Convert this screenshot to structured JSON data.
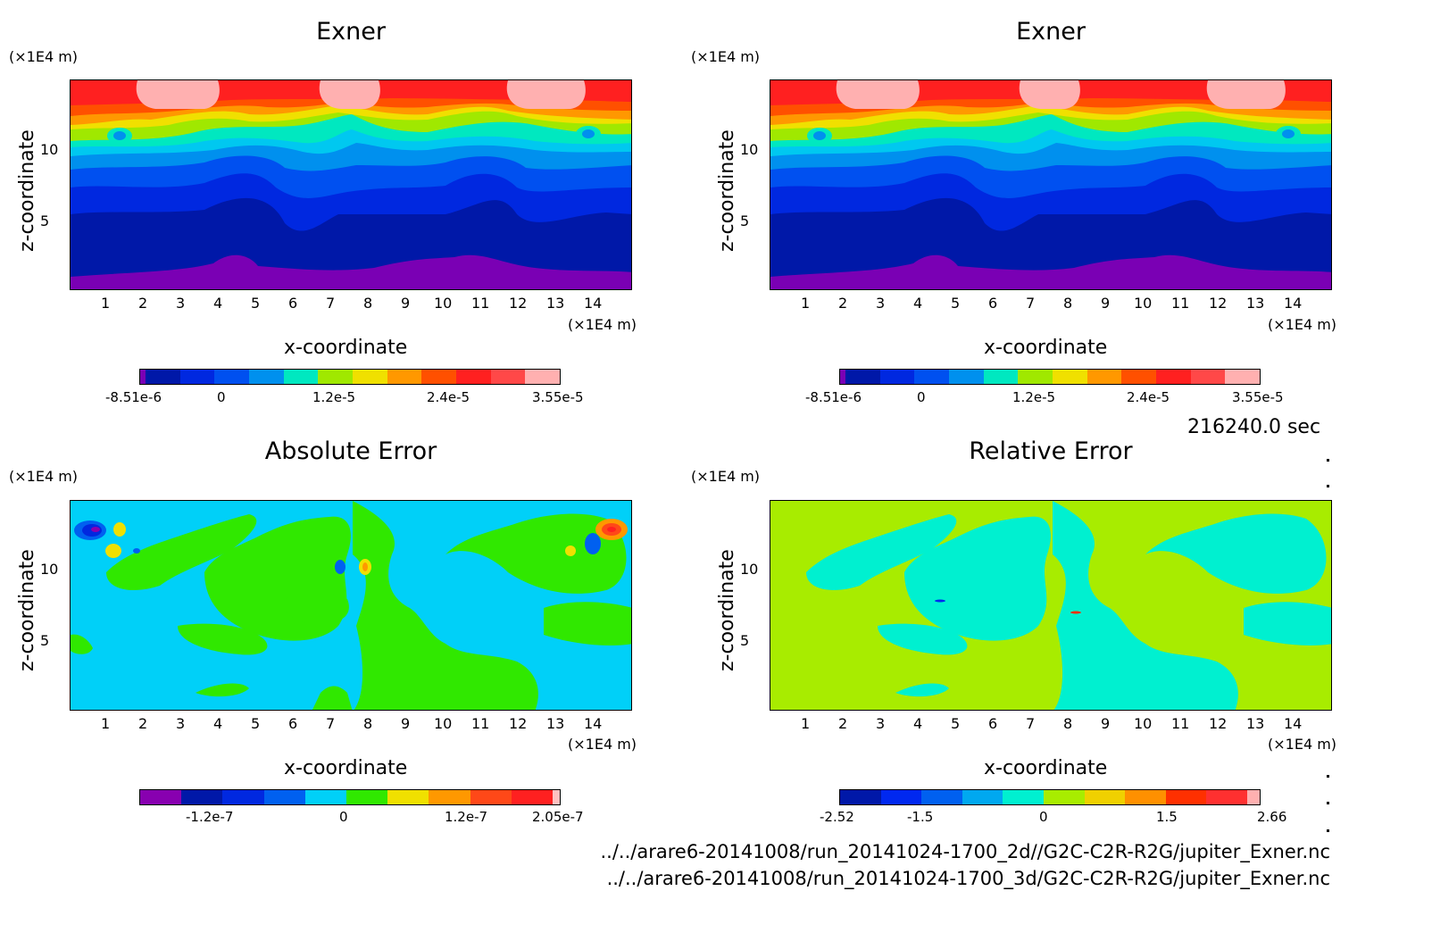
{
  "chart_data": [
    {
      "type": "heatmap",
      "title": "Exner",
      "xlabel": "x-coordinate",
      "ylabel": "z-coordinate",
      "xunit": "(×1E4 m)",
      "yunit": "(×1E4 m)",
      "xticks": [
        "1",
        "2",
        "3",
        "4",
        "5",
        "6",
        "7",
        "8",
        "9",
        "10",
        "11",
        "12",
        "13",
        "14"
      ],
      "yticks": [
        "5",
        "10"
      ],
      "colorbar": {
        "min": -8.51e-06,
        "max": 3.55e-05,
        "labels": [
          "-8.51e-6",
          "0",
          "1.2e-5",
          "2.4e-5",
          "3.55e-5"
        ]
      },
      "colors": [
        "#7a00b4",
        "#0018a8",
        "#0028e0",
        "#0050f0",
        "#0090ee",
        "#00c8f0",
        "#00e8c0",
        "#a0e800",
        "#f0e000",
        "#ff9800",
        "#ff5000",
        "#ff2020",
        "#ff4848",
        "#ffb0b0"
      ]
    },
    {
      "type": "heatmap",
      "title": "Exner",
      "xlabel": "x-coordinate",
      "ylabel": "z-coordinate",
      "xunit": "(×1E4 m)",
      "yunit": "(×1E4 m)",
      "xticks": [
        "1",
        "2",
        "3",
        "4",
        "5",
        "6",
        "7",
        "8",
        "9",
        "10",
        "11",
        "12",
        "13",
        "14"
      ],
      "yticks": [
        "5",
        "10"
      ],
      "colorbar": {
        "min": -8.51e-06,
        "max": 3.55e-05,
        "labels": [
          "-8.51e-6",
          "0",
          "1.2e-5",
          "2.4e-5",
          "3.55e-5"
        ]
      },
      "colors": [
        "#7a00b4",
        "#0018a8",
        "#0028e0",
        "#0050f0",
        "#0090ee",
        "#00c8f0",
        "#00e8c0",
        "#a0e800",
        "#f0e000",
        "#ff9800",
        "#ff5000",
        "#ff2020",
        "#ff4848",
        "#ffb0b0"
      ]
    },
    {
      "type": "heatmap",
      "title": "Absolute Error",
      "xlabel": "x-coordinate",
      "ylabel": "z-coordinate",
      "xunit": "(×1E4 m)",
      "yunit": "(×1E4 m)",
      "xticks": [
        "1",
        "2",
        "3",
        "4",
        "5",
        "6",
        "7",
        "8",
        "9",
        "10",
        "11",
        "12",
        "13",
        "14"
      ],
      "yticks": [
        "5",
        "10"
      ],
      "colorbar": {
        "min": -2.05e-07,
        "max": 2.05e-07,
        "labels": [
          "-1.2e-7",
          "0",
          "1.2e-7",
          "2.05e-7"
        ]
      },
      "colors": [
        "#8800b0",
        "#0018a8",
        "#0028e0",
        "#0060f0",
        "#00d0f8",
        "#30e800",
        "#f0e000",
        "#ff9800",
        "#ff4818",
        "#ff2020",
        "#ffc0c0"
      ]
    },
    {
      "type": "heatmap",
      "title": "Relative Error",
      "xlabel": "x-coordinate",
      "ylabel": "z-coordinate",
      "xunit": "(×1E4 m)",
      "yunit": "(×1E4 m)",
      "xticks": [
        "1",
        "2",
        "3",
        "4",
        "5",
        "6",
        "7",
        "8",
        "9",
        "10",
        "11",
        "12",
        "13",
        "14"
      ],
      "yticks": [
        "5",
        "10"
      ],
      "colorbar": {
        "min": -2.52,
        "max": 2.66,
        "labels": [
          "-2.52",
          "-1.5",
          "0",
          "1.5",
          "2.66"
        ]
      },
      "colors": [
        "#0018a8",
        "#0028f0",
        "#0060f0",
        "#00a8f0",
        "#00f0d0",
        "#a8ec00",
        "#f0d000",
        "#ff9000",
        "#ff3000",
        "#ff3030",
        "#ffb0b0"
      ]
    }
  ],
  "time_label": "216240.0 sec",
  "file_paths": [
    "../../arare6-20141008/run_20141024-1700_2d//G2C-C2R-R2G/jupiter_Exner.nc",
    "../../arare6-20141008/run_20141024-1700_3d/G2C-C2R-R2G/jupiter_Exner.nc"
  ]
}
